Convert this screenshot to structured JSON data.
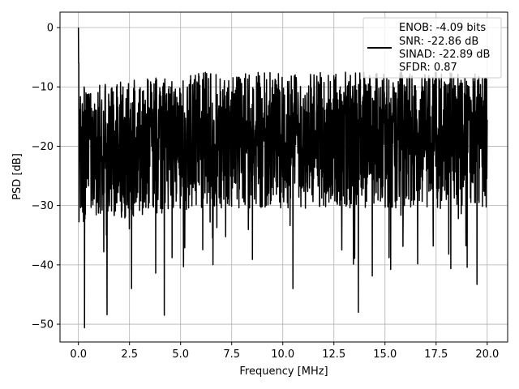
{
  "chart_data": {
    "type": "line",
    "title": "",
    "xlabel": "Frequency [MHz]",
    "ylabel": "PSD [dB]",
    "xlim": [
      -0.9,
      21.0
    ],
    "ylim": [
      -53.0,
      2.6
    ],
    "grid": true,
    "legend_position": "top-right",
    "x_ticks": [
      "0.0",
      "2.5",
      "5.0",
      "7.5",
      "10.0",
      "12.5",
      "15.0",
      "17.5",
      "20.0"
    ],
    "y_ticks": [
      "0",
      "−10",
      "−20",
      "−30",
      "−40",
      "−50"
    ],
    "series": [
      {
        "color": "#000000",
        "x_range": [
          0.0,
          20.0
        ],
        "baseline_db": -21,
        "spikes": [
          {
            "x": 0.0,
            "y": 0.0
          },
          {
            "x": 0.3,
            "y": -50.6
          },
          {
            "x": 1.4,
            "y": -48.4
          },
          {
            "x": 4.2,
            "y": -48.5
          },
          {
            "x": 13.7,
            "y": -48.0
          },
          {
            "x": 10.5,
            "y": -44.0
          },
          {
            "x": 19.5,
            "y": -43.3
          },
          {
            "x": 2.6,
            "y": -44.0
          }
        ]
      }
    ],
    "legend": {
      "lines": [
        "ENOB: -4.09 bits",
        "SNR: -22.86 dB",
        "SINAD: -22.89 dB",
        "SFDR: 0.87"
      ]
    }
  }
}
